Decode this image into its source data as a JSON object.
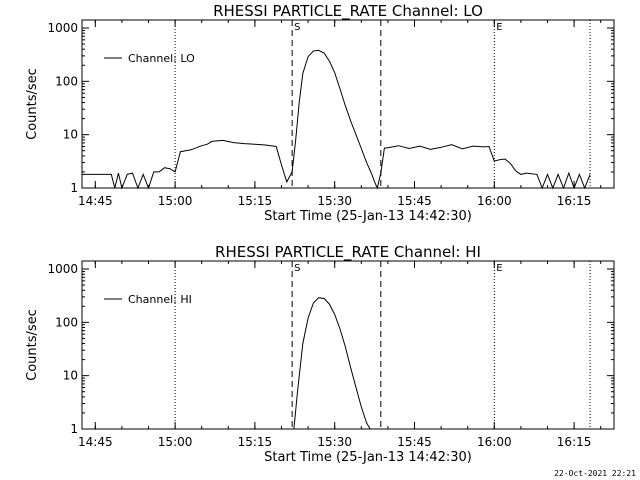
{
  "footer": {
    "timestamp": "22-Oct-2021 22:21"
  },
  "chart_data": [
    {
      "type": "line",
      "title": "RHESSI PARTICLE_RATE Channel: LO",
      "xlabel": "Start Time (25-Jan-13 14:42:30)",
      "ylabel": "Counts/sec",
      "yscale": "log",
      "xlim": [
        "14:42:30",
        "16:22:30"
      ],
      "ylim": [
        1,
        1000
      ],
      "x_ticks": [
        "14:45",
        "15:00",
        "15:15",
        "15:30",
        "15:45",
        "16:00",
        "16:15"
      ],
      "y_ticks": [
        "1",
        "10",
        "100",
        "1000"
      ],
      "legend": {
        "entries": [
          "Channel: LO"
        ],
        "position": "top-left"
      },
      "markers": [
        {
          "label": "S",
          "time": "15:22:00",
          "style": "dashed"
        },
        {
          "label": "",
          "time": "15:38:40",
          "style": "dashed"
        },
        {
          "label": "",
          "time": "15:00:00",
          "style": "dotted"
        },
        {
          "label": "E",
          "time": "16:00:00",
          "style": "dotted"
        },
        {
          "label": "",
          "time": "16:18:00",
          "style": "dotted"
        }
      ],
      "series": [
        {
          "name": "Channel: LO",
          "x": [
            "14:42:30",
            "14:45:00",
            "14:47:00",
            "14:48:00",
            "14:48:40",
            "14:49:20",
            "14:50:00",
            "14:51:00",
            "14:52:00",
            "14:53:00",
            "14:54:00",
            "14:55:00",
            "14:56:00",
            "14:57:00",
            "14:58:00",
            "14:59:00",
            "15:00:00",
            "15:01:00",
            "15:03:00",
            "15:05:00",
            "15:06:00",
            "15:07:00",
            "15:09:00",
            "15:11:00",
            "15:13:00",
            "15:15:00",
            "15:17:00",
            "15:19:00",
            "15:20:00",
            "15:21:00",
            "15:22:00",
            "15:22:40",
            "15:23:20",
            "15:24:00",
            "15:25:00",
            "15:26:00",
            "15:27:00",
            "15:28:00",
            "15:29:00",
            "15:30:00",
            "15:31:00",
            "15:32:00",
            "15:33:00",
            "15:34:00",
            "15:35:00",
            "15:36:00",
            "15:37:00",
            "15:37:30",
            "15:38:00",
            "15:38:40",
            "15:39:20",
            "15:40:00",
            "15:42:00",
            "15:44:00",
            "15:46:00",
            "15:48:00",
            "15:50:00",
            "15:52:00",
            "15:54:00",
            "15:56:00",
            "15:58:00",
            "15:59:00",
            "16:00:00",
            "16:01:00",
            "16:02:00",
            "16:03:00",
            "16:04:00",
            "16:05:00",
            "16:06:00",
            "16:08:00",
            "16:09:00",
            "16:10:00",
            "16:11:00",
            "16:12:00",
            "16:13:00",
            "16:14:00",
            "16:15:00",
            "16:16:00",
            "16:17:00",
            "16:18:00"
          ],
          "y": [
            1.8,
            1.8,
            1.8,
            1.8,
            1.0,
            1.9,
            1.0,
            1.8,
            1.9,
            1.0,
            1.8,
            1.0,
            2.0,
            2.0,
            2.4,
            2.3,
            2.0,
            4.8,
            5.2,
            6.2,
            6.6,
            7.5,
            7.8,
            7.1,
            6.8,
            6.6,
            6.4,
            6.0,
            2.7,
            1.3,
            2.0,
            8.0,
            40,
            140,
            290,
            370,
            380,
            340,
            240,
            145,
            72,
            35,
            18,
            10,
            5.5,
            3.0,
            1.8,
            1.3,
            1.0,
            1.9,
            5.6,
            5.7,
            6.2,
            5.5,
            6.1,
            5.3,
            5.8,
            6.5,
            5.4,
            6.1,
            5.9,
            6.0,
            3.2,
            3.4,
            3.5,
            2.9,
            2.1,
            1.8,
            1.9,
            1.8,
            1.0,
            1.8,
            1.0,
            1.8,
            1.0,
            1.9,
            1.0,
            1.8,
            1.0,
            1.8
          ]
        }
      ]
    },
    {
      "type": "line",
      "title": "RHESSI PARTICLE_RATE Channel: HI",
      "xlabel": "Start Time (25-Jan-13 14:42:30)",
      "ylabel": "Counts/sec",
      "yscale": "log",
      "xlim": [
        "14:42:30",
        "16:22:30"
      ],
      "ylim": [
        1,
        1000
      ],
      "x_ticks": [
        "14:45",
        "15:00",
        "15:15",
        "15:30",
        "15:45",
        "16:00",
        "16:15"
      ],
      "y_ticks": [
        "1",
        "10",
        "100",
        "1000"
      ],
      "legend": {
        "entries": [
          "Channel: HI"
        ],
        "position": "top-left"
      },
      "markers": [
        {
          "label": "S",
          "time": "15:22:00",
          "style": "dashed"
        },
        {
          "label": "",
          "time": "15:38:40",
          "style": "dashed"
        },
        {
          "label": "",
          "time": "15:00:00",
          "style": "dotted"
        },
        {
          "label": "E",
          "time": "16:00:00",
          "style": "dotted"
        },
        {
          "label": "",
          "time": "16:18:00",
          "style": "dotted"
        }
      ],
      "series": [
        {
          "name": "Channel: HI",
          "x": [
            "15:22:20",
            "15:23:00",
            "15:24:00",
            "15:25:00",
            "15:26:00",
            "15:27:00",
            "15:28:00",
            "15:29:00",
            "15:30:00",
            "15:31:00",
            "15:32:00",
            "15:33:00",
            "15:34:00",
            "15:35:00",
            "15:36:00",
            "15:36:40"
          ],
          "y": [
            1.0,
            5.0,
            40,
            120,
            230,
            290,
            280,
            220,
            140,
            75,
            35,
            14,
            6,
            2.6,
            1.3,
            1.0
          ]
        }
      ]
    }
  ]
}
